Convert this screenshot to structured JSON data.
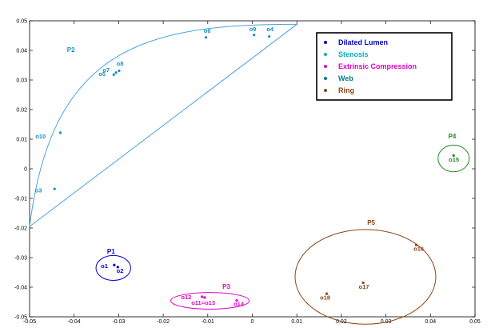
{
  "chart_data": {
    "type": "scatter",
    "xlim": [
      -0.05,
      0.05
    ],
    "ylim": [
      -0.05,
      0.05
    ],
    "x_ticks": [
      "-0.05",
      "-0.04",
      "-0.03",
      "-0.02",
      "-0.01",
      "0",
      "0.01",
      "0.02",
      "0.03",
      "0.04",
      "0.05"
    ],
    "y_ticks": [
      "0.05",
      "0.04",
      "0.03",
      "0.02",
      "0.01",
      "0",
      "-0.01",
      "-0.02",
      "-0.03",
      "-0.04",
      "-0.05"
    ],
    "grid": false,
    "legend_position": "top-right",
    "legend": [
      {
        "label": "Dilated Lumen",
        "color": "#0000cc"
      },
      {
        "label": "Stenosis",
        "color": "#00b0c0"
      },
      {
        "label": "Extrinsic Compression",
        "color": "#e000c8"
      },
      {
        "label": "Web",
        "color": "#007b8a"
      },
      {
        "label": "Ring",
        "color": "#8b4513"
      }
    ],
    "series": [
      {
        "name": "Dilated Lumen",
        "color": "#0000cc",
        "points": [
          {
            "label": "o1",
            "x": -0.031,
            "y": -0.0325
          },
          {
            "label": "o2",
            "x": -0.0302,
            "y": -0.0332
          }
        ]
      },
      {
        "name": "Stenosis",
        "color": "#1a8fc6",
        "points": [
          {
            "label": "o3",
            "x": -0.0444,
            "y": -0.0068
          },
          {
            "label": "o4",
            "x": 0.0038,
            "y": 0.0447
          },
          {
            "label": "o5",
            "x": -0.0311,
            "y": 0.0318
          },
          {
            "label": "o6",
            "x": -0.0104,
            "y": 0.0444
          },
          {
            "label": "o7",
            "x": -0.0306,
            "y": 0.0325
          },
          {
            "label": "o8",
            "x": -0.0299,
            "y": 0.0331
          },
          {
            "label": "o9",
            "x": 0.0004,
            "y": 0.0452
          },
          {
            "label": "o10",
            "x": -0.0431,
            "y": 0.0122
          }
        ]
      },
      {
        "name": "Extrinsic Compression",
        "color": "#e000c8",
        "points": [
          {
            "label": "o11",
            "x": -0.0107,
            "y": -0.0435
          },
          {
            "label": "o12",
            "x": -0.0113,
            "y": -0.0432
          },
          {
            "label": "o13",
            "x": -0.0107,
            "y": -0.0435
          },
          {
            "label": "o14",
            "x": -0.0035,
            "y": -0.0445
          }
        ]
      },
      {
        "name": "Web",
        "color": "#228b22",
        "points": [
          {
            "label": "o15",
            "x": 0.0452,
            "y": 0.0045
          }
        ]
      },
      {
        "name": "Ring",
        "color": "#8b4513",
        "points": [
          {
            "label": "o16",
            "x": 0.0368,
            "y": -0.0257
          },
          {
            "label": "o17",
            "x": 0.0249,
            "y": -0.0385
          },
          {
            "label": "o18",
            "x": 0.0167,
            "y": -0.0422
          }
        ]
      }
    ],
    "point_labels": [
      {
        "text": "o1",
        "x": -0.034,
        "y": -0.0335,
        "color": "#0000cc"
      },
      {
        "text": "o2",
        "x": -0.0305,
        "y": -0.0352,
        "color": "#0000cc"
      },
      {
        "text": "o3",
        "x": -0.0488,
        "y": -0.008,
        "color": "#1a8fc6"
      },
      {
        "text": "o4",
        "x": 0.0032,
        "y": 0.0465,
        "color": "#1a8fc6"
      },
      {
        "text": "o5",
        "x": -0.0345,
        "y": 0.0314,
        "color": "#1a8fc6"
      },
      {
        "text": "o6",
        "x": -0.0109,
        "y": 0.046,
        "color": "#1a8fc6"
      },
      {
        "text": "o7",
        "x": -0.0336,
        "y": 0.0327,
        "color": "#1a8fc6"
      },
      {
        "text": "o8",
        "x": -0.0305,
        "y": 0.0348,
        "color": "#1a8fc6"
      },
      {
        "text": "o9",
        "x": -0.0007,
        "y": 0.0465,
        "color": "#1a8fc6"
      },
      {
        "text": "o10",
        "x": -0.0487,
        "y": 0.0103,
        "color": "#1a8fc6"
      },
      {
        "text": "o12",
        "x": -0.016,
        "y": -0.044,
        "color": "#e000c8"
      },
      {
        "text": "o11=o13",
        "x": -0.0137,
        "y": -0.046,
        "color": "#e000c8"
      },
      {
        "text": "o14",
        "x": -0.0042,
        "y": -0.0463,
        "color": "#e000c8"
      },
      {
        "text": "o15",
        "x": 0.0441,
        "y": 0.0025,
        "color": "#228b22"
      },
      {
        "text": "o16",
        "x": 0.0362,
        "y": -0.0277,
        "color": "#8b4513"
      },
      {
        "text": "o17",
        "x": 0.0239,
        "y": -0.0405,
        "color": "#8b4513"
      },
      {
        "text": "o18",
        "x": 0.0152,
        "y": -0.0442,
        "color": "#8b4513"
      }
    ],
    "clusters": [
      {
        "label": "P1",
        "color": "#0000cc",
        "cx": -0.0312,
        "cy": -0.0335,
        "rx": 0.0039,
        "ry": 0.0042,
        "label_x": -0.0326,
        "label_y": -0.0287
      },
      {
        "label": "P3",
        "color": "#e000c8",
        "cx": -0.0095,
        "cy": -0.0446,
        "rx": 0.0088,
        "ry": 0.0028,
        "label_x": -0.0067,
        "label_y": -0.0405
      },
      {
        "label": "P4",
        "color": "#228b22",
        "cx": 0.0452,
        "cy": 0.0035,
        "rx": 0.0035,
        "ry": 0.0045,
        "label_x": 0.044,
        "label_y": 0.0103
      },
      {
        "label": "P5",
        "color": "#8b4513",
        "cx": 0.0254,
        "cy": -0.0365,
        "rx": 0.0158,
        "ry": 0.016,
        "label_x": 0.0258,
        "label_y": -0.0189
      }
    ],
    "hull": {
      "label": "P2",
      "color": "#4aa3df",
      "label_x": -0.0416,
      "label_y": 0.0395
    }
  }
}
